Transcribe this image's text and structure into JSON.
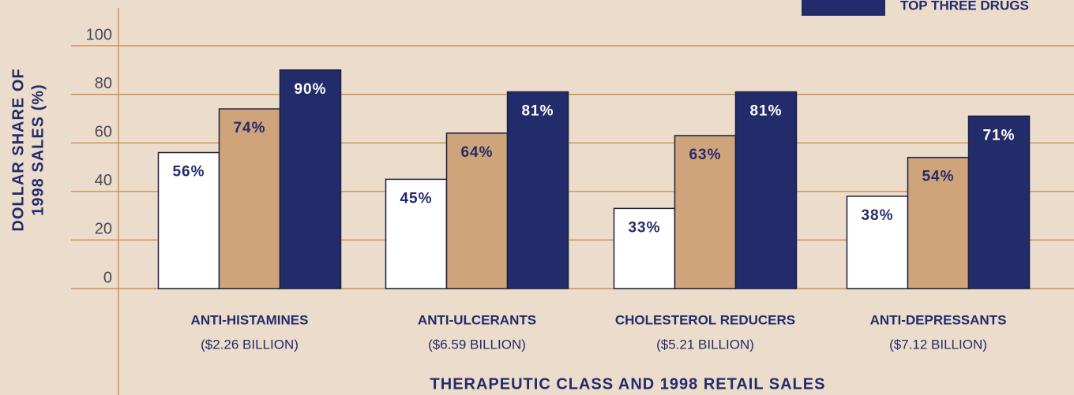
{
  "chart_data": {
    "type": "bar",
    "xlabel": "THERAPEUTIC CLASS AND 1998 RETAIL SALES",
    "ylabel": [
      "DOLLAR SHARE OF",
      "1998 SALES (%)"
    ],
    "categories": [
      "ANTI-HISTAMINES",
      "ANTI-ULCERANTS",
      "CHOLESTEROL REDUCERS",
      "ANTI-DEPRESSANTS"
    ],
    "category_sublabels": [
      "($2.26 BILLION)",
      "($6.59 BILLION)",
      "($5.21 BILLION)",
      "($7.12 BILLION)"
    ],
    "series": [
      {
        "color": "#ffffff",
        "label_color": "#232c6a",
        "values": [
          56,
          45,
          33,
          38
        ],
        "value_labels": [
          "56%",
          "45%",
          "33%",
          "38%"
        ]
      },
      {
        "color": "#cfa47b",
        "label_color": "#232c6a",
        "values": [
          74,
          64,
          63,
          54
        ],
        "value_labels": [
          "74%",
          "64%",
          "63%",
          "54%"
        ]
      },
      {
        "name": "TOP THREE DRUGS",
        "color": "#232c6a",
        "label_color": "#ffffff",
        "values": [
          90,
          81,
          81,
          71
        ],
        "value_labels": [
          "90%",
          "81%",
          "81%",
          "71%"
        ]
      }
    ],
    "legend_series": [
      2
    ],
    "legend": "top-right",
    "ylim": [
      0,
      100
    ],
    "yticks": [
      0,
      20,
      40,
      60,
      80,
      100
    ],
    "grid": true
  }
}
